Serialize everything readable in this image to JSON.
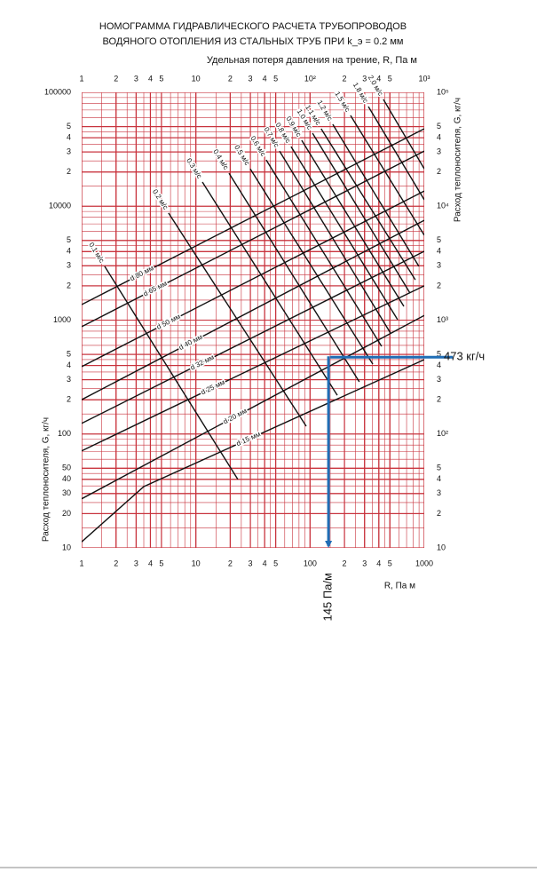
{
  "chart_data": {
    "type": "nomogram",
    "title": "НОМОГРАММА ГИДРАВЛИЧЕСКОГО РАСЧЕТА ТРУБОПРОВОДОВ",
    "subtitle": "ВОДЯНОГО ОТОПЛЕНИЯ ИЗ СТАЛЬНЫХ ТРУБ ПРИ k_э = 0.2 мм",
    "x2_label": "Удельная потеря давления на трение, R, Па м",
    "x_label": "R, Па м",
    "y_label": "Расход теплоносителя, G, кг/ч",
    "y2_label": "Расход теплоносителя, G, кг/ч",
    "log_x": true,
    "log_y": true,
    "grid": true,
    "minor_grid": true,
    "grid_color": "#c8323c",
    "xlim": [
      1,
      1000
    ],
    "ylim": [
      10,
      100000
    ],
    "xticks": [
      1,
      2,
      3,
      4,
      5,
      10,
      {
        "value": 20,
        "label": "2"
      },
      {
        "value": 30,
        "label": "3"
      },
      {
        "value": 40,
        "label": "4"
      },
      {
        "value": 50,
        "label": "5"
      },
      100,
      {
        "value": 200,
        "label": "2"
      },
      {
        "value": 300,
        "label": "3"
      },
      {
        "value": 400,
        "label": "4"
      },
      {
        "value": 500,
        "label": "5"
      },
      1000
    ],
    "x2ticks": [
      1,
      2,
      3,
      4,
      5,
      10,
      {
        "value": 20,
        "label": "2"
      },
      {
        "value": 30,
        "label": "3"
      },
      {
        "value": 40,
        "label": "4"
      },
      {
        "value": 50,
        "label": "5"
      },
      {
        "value": 100,
        "label": "10²"
      },
      {
        "value": 200,
        "label": "2"
      },
      {
        "value": 300,
        "label": "3"
      },
      {
        "value": 400,
        "label": "4"
      },
      {
        "value": 500,
        "label": "5"
      },
      {
        "value": 1000,
        "label": "10³"
      }
    ],
    "yticks": [
      10,
      20,
      30,
      40,
      50,
      100,
      {
        "value": 200,
        "label": "2"
      },
      {
        "value": 300,
        "label": "3"
      },
      {
        "value": 400,
        "label": "4"
      },
      {
        "value": 500,
        "label": "5"
      },
      1000,
      {
        "value": 2000,
        "label": "2"
      },
      {
        "value": 3000,
        "label": "3"
      },
      {
        "value": 4000,
        "label": "4"
      },
      {
        "value": 5000,
        "label": "5"
      },
      10000,
      {
        "value": 20000,
        "label": "2"
      },
      {
        "value": 30000,
        "label": "3"
      },
      {
        "value": 40000,
        "label": "4"
      },
      {
        "value": 50000,
        "label": "5"
      },
      100000
    ],
    "y2ticks": [
      10,
      {
        "value": 20,
        "label": "2"
      },
      {
        "value": 30,
        "label": "3"
      },
      {
        "value": 40,
        "label": "4"
      },
      {
        "value": 50,
        "label": "5"
      },
      {
        "value": 100,
        "label": "10²"
      },
      {
        "value": 200,
        "label": "2"
      },
      {
        "value": 300,
        "label": "3"
      },
      {
        "value": 400,
        "label": "4"
      },
      {
        "value": 500,
        "label": "5"
      },
      {
        "value": 1000,
        "label": "10³"
      },
      {
        "value": 2000,
        "label": "2"
      },
      {
        "value": 3000,
        "label": "3"
      },
      {
        "value": 4000,
        "label": "4"
      },
      {
        "value": 5000,
        "label": "5"
      },
      {
        "value": 10000,
        "label": "10⁴"
      },
      {
        "value": 20000,
        "label": "2"
      },
      {
        "value": 30000,
        "label": "3"
      },
      {
        "value": 40000,
        "label": "4"
      },
      {
        "value": 50000,
        "label": "5"
      },
      {
        "value": 100000,
        "label": "10⁵"
      }
    ],
    "series": [
      {
        "name": "d 15 мм",
        "color": "#111111",
        "x": [
          1,
          3.5,
          1000
        ],
        "values": [
          11.3,
          34.5,
          450
        ]
      },
      {
        "name": "d 20 мм",
        "color": "#111111",
        "x": [
          1,
          1000
        ],
        "values": [
          27,
          1100
        ]
      },
      {
        "name": "d 25 мм",
        "color": "#111111",
        "x": [
          1,
          1000
        ],
        "values": [
          71,
          2000
        ]
      },
      {
        "name": "d 32 мм",
        "color": "#111111",
        "x": [
          1,
          1000
        ],
        "values": [
          124,
          4020
        ]
      },
      {
        "name": "d 40 мм",
        "color": "#111111",
        "x": [
          1,
          1000
        ],
        "values": [
          200,
          7530
        ]
      },
      {
        "name": "d 50 мм",
        "color": "#111111",
        "x": [
          1,
          1000
        ],
        "values": [
          390,
          13600
        ]
      },
      {
        "name": "d 65 мм",
        "color": "#111111",
        "x": [
          1,
          1000
        ],
        "values": [
          875,
          30500
        ]
      },
      {
        "name": "d 80 мм",
        "color": "#111111",
        "x": [
          1,
          1000
        ],
        "values": [
          1370,
          47900
        ]
      }
    ],
    "velocity_series": [
      {
        "name": "0.1 м/с",
        "color": "#111111",
        "x": [
          1.59,
          23.3
        ],
        "values": [
          2970,
          40
        ]
      },
      {
        "name": "0.2 м/с",
        "color": "#111111",
        "x": [
          5.77,
          92.5
        ],
        "values": [
          8710,
          117
        ]
      },
      {
        "name": "0.3 м/с",
        "color": "#111111",
        "x": [
          11.4,
          173
        ],
        "values": [
          16300,
          219
        ]
      },
      {
        "name": "0.4 м/с",
        "color": "#111111",
        "x": [
          19.5,
          270
        ],
        "values": [
          19500,
          287
        ]
      },
      {
        "name": "0.5 м/с",
        "color": "#111111",
        "x": [
          29.9,
          354
        ],
        "values": [
          21300,
          411
        ]
      },
      {
        "name": "0.6 м/с",
        "color": "#111111",
        "x": [
          41.3,
          423
        ],
        "values": [
          25500,
          589
        ]
      },
      {
        "name": "0.7 м/с",
        "color": "#111111",
        "x": [
          54,
          506
        ],
        "values": [
          30500,
          771
        ]
      },
      {
        "name": "0.8 м/с",
        "color": "#111111",
        "x": [
          68.2,
          584
        ],
        "values": [
          33400,
          1010
        ]
      },
      {
        "name": "0.9 м/с",
        "color": "#111111",
        "x": [
          84.5,
          662
        ],
        "values": [
          37900,
          1320
        ]
      },
      {
        "name": "1.0 м/с",
        "color": "#111111",
        "x": [
          105,
          750
        ],
        "values": [
          43800,
          1730
        ]
      },
      {
        "name": "1.1 м/с",
        "color": "#111111",
        "x": [
          125,
          835
        ],
        "values": [
          47900,
          2260
        ]
      },
      {
        "name": "1.2 м/с",
        "color": "#111111",
        "x": [
          158,
          897
        ],
        "values": [
          52400,
          2970
        ]
      },
      {
        "name": "1.5 м/с",
        "color": "#111111",
        "x": [
          226,
          1000
        ],
        "values": [
          62700,
          5560
        ]
      },
      {
        "name": "1.8 м/с",
        "color": "#111111",
        "x": [
          324,
          1000
        ],
        "values": [
          75000,
          11400
        ]
      },
      {
        "name": "2.0 м/с",
        "color": "#111111",
        "x": [
          438,
          1000
        ],
        "values": [
          86700,
          21300
        ]
      }
    ],
    "example": {
      "R": 145,
      "G": 473,
      "R_label": "145 Па/м",
      "G_label": "473 кг/ч",
      "color": "#1f6db5"
    }
  }
}
